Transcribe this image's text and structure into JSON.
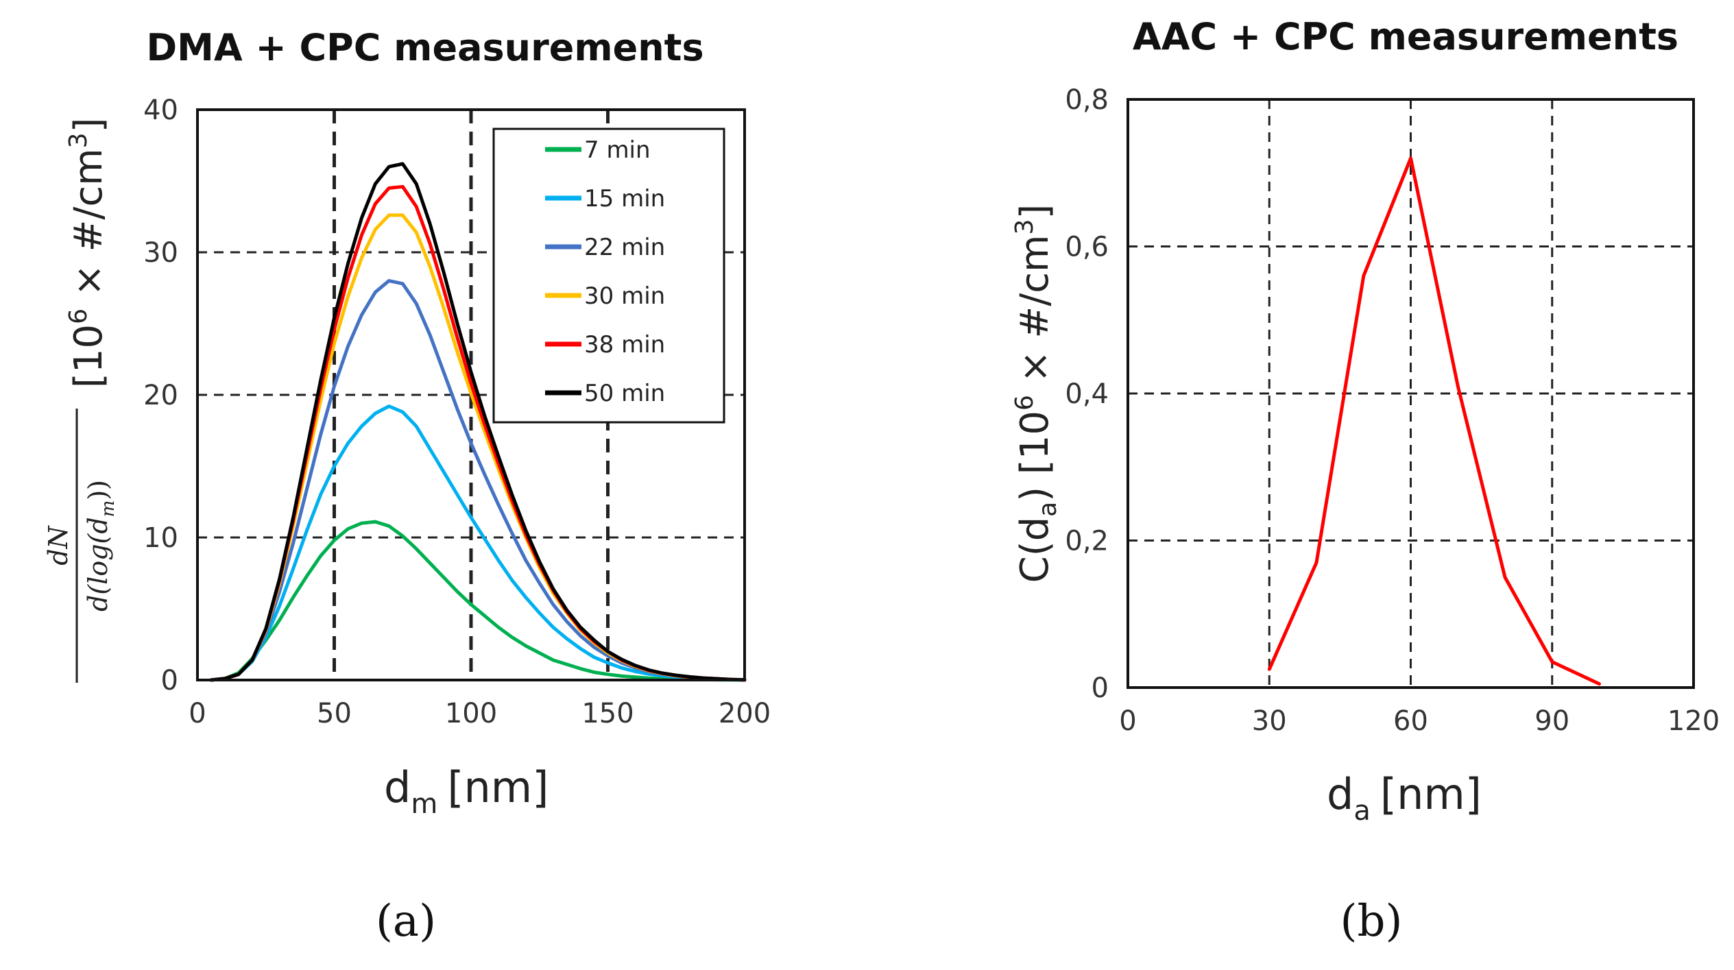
{
  "chart_data": [
    {
      "type": "line",
      "panel": "a",
      "title": "DMA + CPC measurements",
      "xlabel_main": "d",
      "xlabel_sub": "m",
      "xlabel_unit": "[nm]",
      "ylabel_frac_num": "dN",
      "ylabel_frac_den": "d(log(d",
      "ylabel_frac_den_sub": "m",
      "ylabel_frac_den_end": "))",
      "ylabel_unit_pre": "[10",
      "ylabel_unit_sup": "6",
      "ylabel_unit_mid": " × #/cm",
      "ylabel_unit_sup2": "3",
      "ylabel_unit_end": "]",
      "xlim": [
        0,
        200
      ],
      "ylim": [
        0,
        40
      ],
      "xticks": [
        0,
        50,
        100,
        150,
        200
      ],
      "xtick_labels": [
        "0",
        "50",
        "100",
        "150",
        "200"
      ],
      "yticks": [
        0,
        10,
        20,
        30,
        40
      ],
      "ytick_labels": [
        "0",
        "10",
        "20",
        "30",
        "40"
      ],
      "legend_position": "top-right",
      "x": [
        5,
        10,
        15,
        20,
        25,
        30,
        35,
        40,
        45,
        50,
        55,
        60,
        65,
        70,
        75,
        80,
        85,
        90,
        95,
        100,
        105,
        110,
        115,
        120,
        125,
        130,
        135,
        140,
        145,
        150,
        155,
        160,
        165,
        170,
        175,
        180,
        185,
        190,
        195,
        200
      ],
      "series": [
        {
          "name": "7 min",
          "color": "#00b050",
          "values": [
            0,
            0.1,
            0.5,
            1.5,
            2.8,
            4.2,
            5.8,
            7.3,
            8.7,
            9.8,
            10.6,
            11.0,
            11.1,
            10.8,
            10.1,
            9.2,
            8.2,
            7.2,
            6.2,
            5.3,
            4.5,
            3.7,
            3.0,
            2.4,
            1.9,
            1.4,
            1.1,
            0.8,
            0.55,
            0.4,
            0.28,
            0.2,
            0.13,
            0.09,
            0.06,
            0.04,
            0.03,
            0.02,
            0.01,
            0.0
          ]
        },
        {
          "name": "15 min",
          "color": "#00b0f0",
          "values": [
            0,
            0.1,
            0.4,
            1.3,
            3.0,
            5.2,
            7.8,
            10.5,
            13.0,
            15.0,
            16.6,
            17.8,
            18.7,
            19.2,
            18.8,
            17.8,
            16.2,
            14.6,
            13.0,
            11.4,
            9.9,
            8.4,
            7.0,
            5.8,
            4.7,
            3.7,
            2.9,
            2.2,
            1.6,
            1.2,
            0.85,
            0.6,
            0.42,
            0.3,
            0.2,
            0.14,
            0.09,
            0.06,
            0.03,
            0.01
          ]
        },
        {
          "name": "22 min",
          "color": "#4472c4",
          "values": [
            0,
            0.1,
            0.4,
            1.4,
            3.3,
            6.2,
            9.6,
            13.4,
            17.2,
            20.6,
            23.4,
            25.6,
            27.2,
            28.0,
            27.8,
            26.4,
            24.2,
            21.6,
            19.0,
            16.6,
            14.4,
            12.3,
            10.3,
            8.4,
            6.8,
            5.3,
            4.1,
            3.1,
            2.3,
            1.7,
            1.2,
            0.85,
            0.58,
            0.4,
            0.27,
            0.18,
            0.12,
            0.07,
            0.04,
            0.01
          ]
        },
        {
          "name": "30 min",
          "color": "#ffc000",
          "values": [
            0,
            0.1,
            0.4,
            1.4,
            3.5,
            6.8,
            10.8,
            15.2,
            19.6,
            23.6,
            26.9,
            29.6,
            31.6,
            32.6,
            32.6,
            31.4,
            29.0,
            26.1,
            23.0,
            20.1,
            17.4,
            14.8,
            12.3,
            10.0,
            7.9,
            6.1,
            4.7,
            3.5,
            2.6,
            1.9,
            1.35,
            0.95,
            0.65,
            0.45,
            0.3,
            0.2,
            0.13,
            0.08,
            0.04,
            0.01
          ]
        },
        {
          "name": "38 min",
          "color": "#ff0000",
          "values": [
            0,
            0.1,
            0.4,
            1.4,
            3.6,
            7.0,
            11.2,
            15.8,
            20.4,
            24.6,
            28.2,
            31.2,
            33.4,
            34.5,
            34.6,
            33.2,
            30.6,
            27.4,
            24.0,
            20.8,
            17.9,
            15.2,
            12.6,
            10.2,
            8.1,
            6.3,
            4.8,
            3.6,
            2.7,
            2.0,
            1.4,
            1.0,
            0.68,
            0.47,
            0.32,
            0.21,
            0.14,
            0.08,
            0.04,
            0.01
          ]
        },
        {
          "name": "50 min",
          "color": "#000000",
          "values": [
            0,
            0.1,
            0.4,
            1.4,
            3.6,
            7.1,
            11.4,
            16.2,
            21.0,
            25.4,
            29.2,
            32.4,
            34.8,
            36.0,
            36.2,
            34.8,
            32.0,
            28.6,
            25.0,
            21.6,
            18.5,
            15.7,
            13.0,
            10.5,
            8.3,
            6.4,
            4.9,
            3.7,
            2.8,
            2.0,
            1.45,
            1.02,
            0.7,
            0.48,
            0.33,
            0.22,
            0.14,
            0.09,
            0.04,
            0.01
          ]
        }
      ]
    },
    {
      "type": "line",
      "panel": "b",
      "title": "AAC + CPC measurements",
      "xlabel_main": "d",
      "xlabel_sub": "a",
      "xlabel_unit": "[nm]",
      "ylabel_pre": "C(d",
      "ylabel_sub": "a",
      "ylabel_mid": ") [10",
      "ylabel_sup": "6",
      "ylabel_mid2": " × #/cm",
      "ylabel_sup2": "3",
      "ylabel_end": "]",
      "xlim": [
        0,
        120
      ],
      "ylim": [
        0,
        0.8
      ],
      "xticks": [
        0,
        30,
        60,
        90,
        120
      ],
      "xtick_labels": [
        "0",
        "30",
        "60",
        "90",
        "120"
      ],
      "yticks": [
        0,
        0.2,
        0.4,
        0.6,
        0.8
      ],
      "ytick_labels": [
        "0",
        "0,2",
        "0,4",
        "0,6",
        "0,8"
      ],
      "series": [
        {
          "name": "AAC",
          "color": "#ff0000",
          "x": [
            30,
            40,
            50,
            60,
            70,
            80,
            90,
            100
          ],
          "values": [
            0.025,
            0.17,
            0.56,
            0.72,
            0.41,
            0.15,
            0.035,
            0.005
          ]
        }
      ]
    }
  ],
  "panel_labels": {
    "a": "(a)",
    "b": "(b)"
  }
}
